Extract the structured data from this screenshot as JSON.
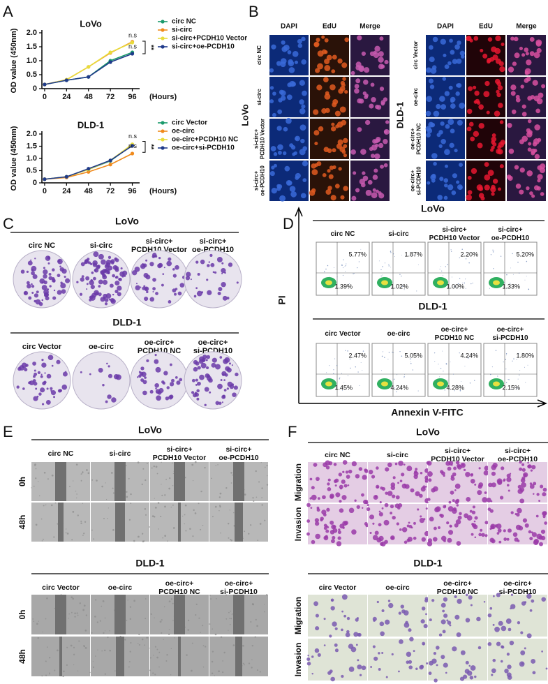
{
  "panel_labels": [
    "A",
    "B",
    "C",
    "D",
    "E",
    "F"
  ],
  "chart_data": [
    {
      "type": "line",
      "title": "LoVo",
      "ylabel": "OD value (450nm)",
      "xlabel": "(Hours)",
      "x": [
        0,
        24,
        48,
        72,
        96
      ],
      "xlim": [
        -3,
        104
      ],
      "xticks": [
        0,
        24,
        48,
        72,
        96
      ],
      "ylim": [
        0,
        2
      ],
      "yticks": [
        0,
        0.5,
        {
          "value": 1,
          "label": "1.0"
        },
        1.5,
        {
          "value": 2,
          "label": "2.0"
        }
      ],
      "annotations": [
        "n.s",
        "n.s",
        "**"
      ],
      "series": [
        {
          "name": "circ NC",
          "color": "#1a9a6c",
          "values": [
            0.15,
            0.3,
            0.42,
            1.0,
            1.3
          ]
        },
        {
          "name": "si-circ",
          "color": "#f08a1c",
          "values": [
            0.15,
            0.32,
            0.78,
            1.28,
            1.68
          ]
        },
        {
          "name": "si-circ+PCDH10 Vector",
          "color": "#e8dc3c",
          "values": [
            0.15,
            0.32,
            0.78,
            1.3,
            1.65
          ]
        },
        {
          "name": "si-circ+oe-PCDH10",
          "color": "#1f3a8a",
          "values": [
            0.15,
            0.3,
            0.42,
            0.95,
            1.25
          ]
        }
      ]
    },
    {
      "type": "line",
      "title": "DLD-1",
      "ylabel": "OD value (450nm)",
      "xlabel": "(Hours)",
      "x": [
        0,
        24,
        48,
        72,
        96
      ],
      "xlim": [
        -3,
        104
      ],
      "xticks": [
        0,
        24,
        48,
        72,
        96
      ],
      "ylim": [
        0,
        2
      ],
      "yticks": [
        0,
        0.5,
        {
          "value": 1,
          "label": "1.0"
        },
        1.5,
        {
          "value": 2,
          "label": "2.0"
        }
      ],
      "annotations": [
        "n.s",
        "n.s",
        "**"
      ],
      "series": [
        {
          "name": "circ Vector",
          "color": "#1a9a6c",
          "values": [
            0.15,
            0.25,
            0.55,
            0.9,
            1.55
          ]
        },
        {
          "name": "oe-circ",
          "color": "#f08a1c",
          "values": [
            0.15,
            0.22,
            0.45,
            0.75,
            1.2
          ]
        },
        {
          "name": "oe-circ+PCDH10 NC",
          "color": "#e8dc3c",
          "values": [
            0.15,
            0.25,
            0.55,
            0.92,
            1.58
          ]
        },
        {
          "name": "oe-circ+si-PCDH10",
          "color": "#1f3a8a",
          "values": [
            0.15,
            0.25,
            0.58,
            0.92,
            1.52
          ]
        }
      ]
    }
  ],
  "panel_b": {
    "columns": [
      "DAPI",
      "EdU",
      "Merge"
    ],
    "groups": [
      {
        "cell_line": "LoVo",
        "rows": [
          [
            "circ NC"
          ],
          [
            "si-circ"
          ],
          [
            "si-circ+",
            "PCDH10 Vector"
          ],
          [
            "si-circ+",
            "oe-PCDH10"
          ]
        ]
      },
      {
        "cell_line": "DLD-1",
        "rows": [
          [
            "circ Vector"
          ],
          [
            "oe-circ"
          ],
          [
            "oe-circ+",
            "PCDH10 NC"
          ],
          [
            "oe-circ+",
            "si-PCDH10"
          ]
        ]
      }
    ]
  },
  "panel_c": {
    "groups": [
      {
        "title": "LoVo",
        "columns": [
          [
            "circ NC"
          ],
          [
            "si-circ"
          ],
          [
            "si-circ+",
            "PCDH10 Vector"
          ],
          [
            "si-circ+",
            "oe-PCDH10"
          ]
        ]
      },
      {
        "title": "DLD-1",
        "columns": [
          [
            "circ Vector"
          ],
          [
            "oe-circ"
          ],
          [
            "oe-circ+",
            "PCDH10 NC"
          ],
          [
            "oe-circ+",
            "si-PCDH10"
          ]
        ]
      }
    ]
  },
  "panel_d": {
    "y_axis": "PI",
    "x_axis": "Annexin V-FITC",
    "groups": [
      {
        "title": "LoVo",
        "columns": [
          [
            "circ NC"
          ],
          [
            "si-circ"
          ],
          [
            "si-circ+",
            "PCDH10 Vector"
          ],
          [
            "si-circ+",
            "oe-PCDH10"
          ]
        ],
        "percentages": [
          [
            "5.77%",
            "1.39%"
          ],
          [
            "1.87%",
            "1.02%"
          ],
          [
            "2.20%",
            "1.00%"
          ],
          [
            "5.20%",
            "1.33%"
          ]
        ]
      },
      {
        "title": "DLD-1",
        "columns": [
          [
            "circ Vector"
          ],
          [
            "oe-circ"
          ],
          [
            "oe-circ+",
            "PCDH10 NC"
          ],
          [
            "oe-circ+",
            "si-PCDH10"
          ]
        ],
        "percentages": [
          [
            "2.47%",
            "1.45%"
          ],
          [
            "5.05%",
            "4.24%"
          ],
          [
            "4.24%",
            "4.28%"
          ],
          [
            "1.80%",
            "2.15%"
          ]
        ]
      }
    ]
  },
  "panel_e": {
    "groups": [
      {
        "title": "LoVo",
        "columns": [
          [
            "circ NC"
          ],
          [
            "si-circ"
          ],
          [
            "si-circ+",
            "PCDH10 Vector"
          ],
          [
            "si-circ+",
            "oe-PCDH10"
          ]
        ],
        "rows": [
          "0h",
          "48h"
        ]
      },
      {
        "title": "DLD-1",
        "columns": [
          [
            "circ Vector"
          ],
          [
            "oe-circ"
          ],
          [
            "oe-circ+",
            "PCDH10 NC"
          ],
          [
            "oe-circ+",
            "si-PCDH10"
          ]
        ],
        "rows": [
          "0h",
          "48h"
        ]
      }
    ]
  },
  "panel_f": {
    "groups": [
      {
        "title": "LoVo",
        "columns": [
          [
            "circ NC"
          ],
          [
            "si-circ"
          ],
          [
            "si-circ+",
            "PCDH10 Vector"
          ],
          [
            "si-circ+",
            "oe-PCDH10"
          ]
        ],
        "rows": [
          "Migration",
          "Invasion"
        ]
      },
      {
        "title": "DLD-1",
        "columns": [
          [
            "circ Vector"
          ],
          [
            "oe-circ"
          ],
          [
            "oe-circ+",
            "PCDH10 NC"
          ],
          [
            "oe-circ+",
            "si-PCDH10"
          ]
        ],
        "rows": [
          "Migration",
          "Invasion"
        ]
      }
    ]
  }
}
